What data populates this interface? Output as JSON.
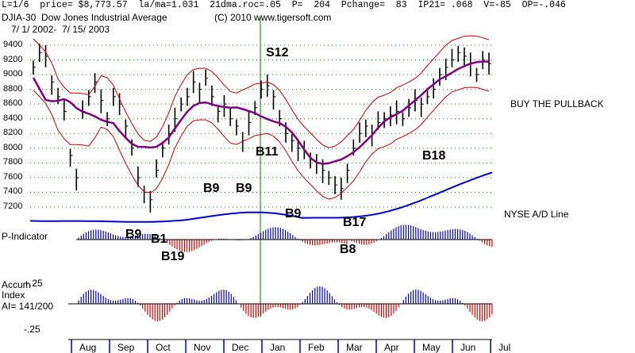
{
  "header": {
    "line1": "L=1/6  price= $8,773.57  la/ma=1.031  21dma.roc=.05  P=  204  Pchange=  83  IP21= .068  V=-85  OP=-.046",
    "line2_left": "DJIA-30  Dow Jones Industrial Average",
    "line2_right": "(C) 2010 www.tigersoft.com",
    "line3": "7/ 1/ 2002-  7/ 15/ 2003"
  },
  "side_labels": {
    "buy_pullback": "BUY THE PULLBACK",
    "nyse_ad": "NYSE A/D Line",
    "p_indicator": "P-Indicator",
    "accum1": "Accum",
    "accum2": "Index",
    "accum3": "AI= 141/200",
    "acc_top": "+.25",
    "acc_bottom": "-.25"
  },
  "signals": {
    "s12": "S12",
    "b11": "B11",
    "b18": "B18",
    "b9a": "B9",
    "b9b": "B9",
    "b9c": "B9",
    "b9d": "B9",
    "b1": "B1",
    "b19": "B19",
    "b17": "B17",
    "b8": "B8"
  },
  "colors": {
    "price_bar": "#000000",
    "band": "#cc0000",
    "ma": "#800080",
    "ad": "#0000cc",
    "signal_red": "#dd0000",
    "vline": "#008000",
    "grid": "#009900"
  },
  "chart_data": {
    "type": "line",
    "title": "DJIA-30 Dow Jones Industrial Average",
    "ylim": [
      7000,
      9400
    ],
    "yticks": [
      "9400",
      "9200",
      "9000",
      "8800",
      "8600",
      "8400",
      "8200",
      "8000",
      "7800",
      "7600",
      "7400",
      "7200"
    ],
    "months": [
      "Aug",
      "Sep",
      "Oct",
      "Nov",
      "Dec",
      "Jan",
      "Feb",
      "Mar",
      "Apr",
      "May",
      "Jun",
      "Jul"
    ],
    "price_points": [
      9100,
      9300,
      9250,
      8900,
      8700,
      8500,
      7900,
      7600,
      8500,
      8700,
      8900,
      8650,
      8400,
      8700,
      8600,
      8300,
      8000,
      7600,
      7400,
      7300,
      7700,
      8000,
      8200,
      8400,
      8600,
      8700,
      8900,
      8800,
      8950,
      8700,
      8500,
      8600,
      8400,
      8300,
      8100,
      8350,
      8550,
      8800,
      8850,
      8700,
      8400,
      8200,
      8100,
      8000,
      7950,
      7850,
      7800,
      7700,
      7600,
      7500,
      7450,
      7700,
      8000,
      8200,
      8300,
      8200,
      8350,
      8400,
      8450,
      8500,
      8400,
      8550,
      8650,
      8600,
      8700,
      8800,
      9000,
      9100,
      9200,
      9300,
      9250,
      9150,
      9000,
      9200,
      9150
    ]
  }
}
